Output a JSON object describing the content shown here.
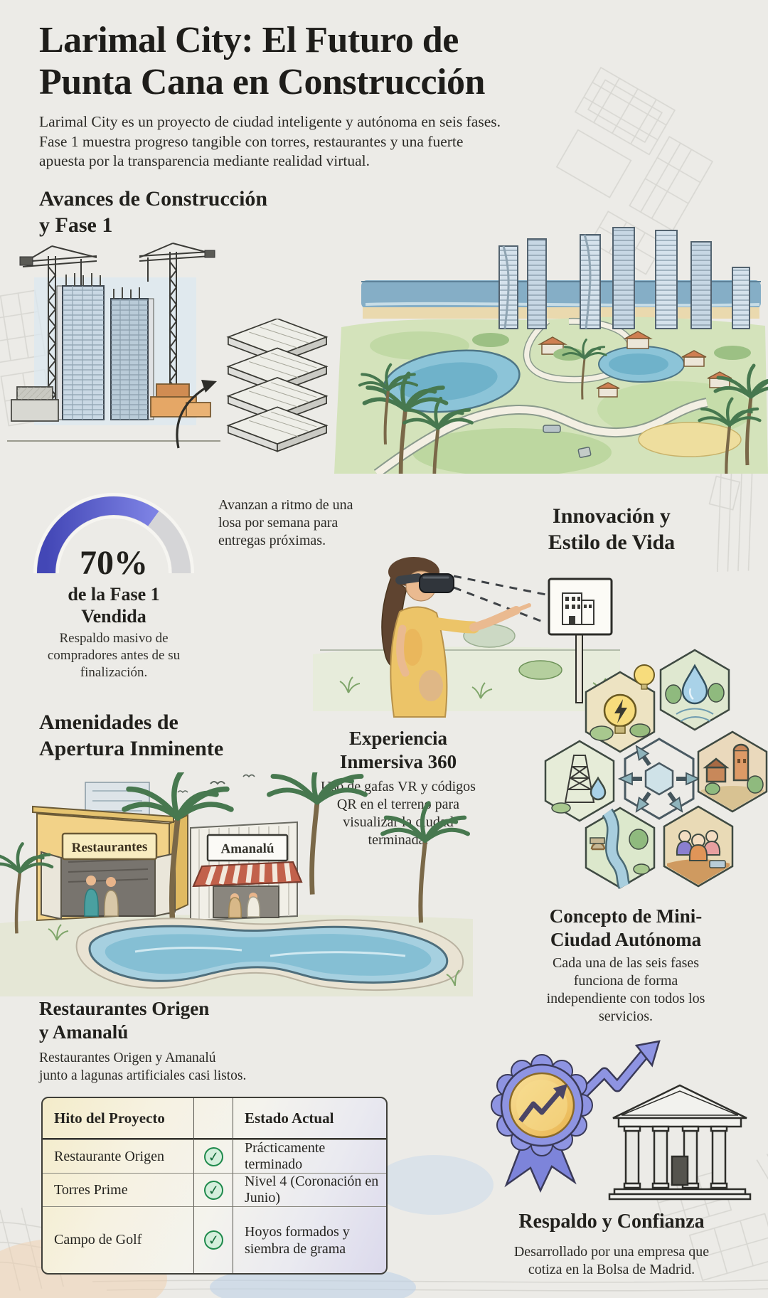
{
  "page": {
    "background": "#ecebe7",
    "title": "Larimal City: El Futuro de\nPunta Cana en Construcción",
    "intro": "Larimal City es un proyecto de ciudad inteligente y autónoma en seis fases.\nFase 1 muestra progreso tangible con torres, restaurantes y una fuerte\napuesta por la transparencia mediante realidad virtual."
  },
  "construction": {
    "heading": "Avances de Construcción\ny Fase 1",
    "slab_note": "Avanzan a ritmo de una\nlosa por semana para\nentregas próximas.",
    "gauge": {
      "value": "70%",
      "percent": 70,
      "label": "de la Fase 1\nVendida",
      "note": "Respaldo masivo de\ncompradores antes de su\nfinalización.",
      "fill_color": "#5156c9",
      "track_color": "#e3e3e5"
    }
  },
  "innovation": {
    "heading": "Innovación y\nEstilo de Vida",
    "immersive": {
      "heading": "Experiencia\nInmersiva 360",
      "text": "Uso de gafas VR y códigos\nQR en el terreno para\nvisualizar la ciudad\nterminada."
    },
    "mini_city": {
      "heading": "Concepto de Mini-\nCiudad Autónoma",
      "text": "Cada una de las seis fases\nfunciona de forma\nindependiente con todos los\nservicios."
    }
  },
  "amenities": {
    "heading": "Amenidades de\nApertura Inminente",
    "sign_left": "Restaurantes",
    "sign_right": "Amanalú",
    "detail": {
      "heading": "Restaurantes Origen\ny Amanalú",
      "text": "Restaurantes Origen y Amanalú\njunto a lagunas artificiales casi listos."
    }
  },
  "milestones_table": {
    "col_milestone": "Hito del Proyecto",
    "col_status": "Estado Actual",
    "check_glyph": "✓",
    "check_color": "#1f8a4c",
    "rows": [
      {
        "milestone": "Restaurante Origen",
        "status": "Prácticamente terminado"
      },
      {
        "milestone": "Torres Prime",
        "status": "Nivel 4 (Coronación en Junio)"
      },
      {
        "milestone": "Campo de Golf",
        "status": "Hoyos formados y\nsiembra de grama"
      }
    ]
  },
  "trust": {
    "heading": "Respaldo y Confianza",
    "text": "Desarrollado por una empresa que\ncotiza en la Bolsa de Madrid."
  }
}
